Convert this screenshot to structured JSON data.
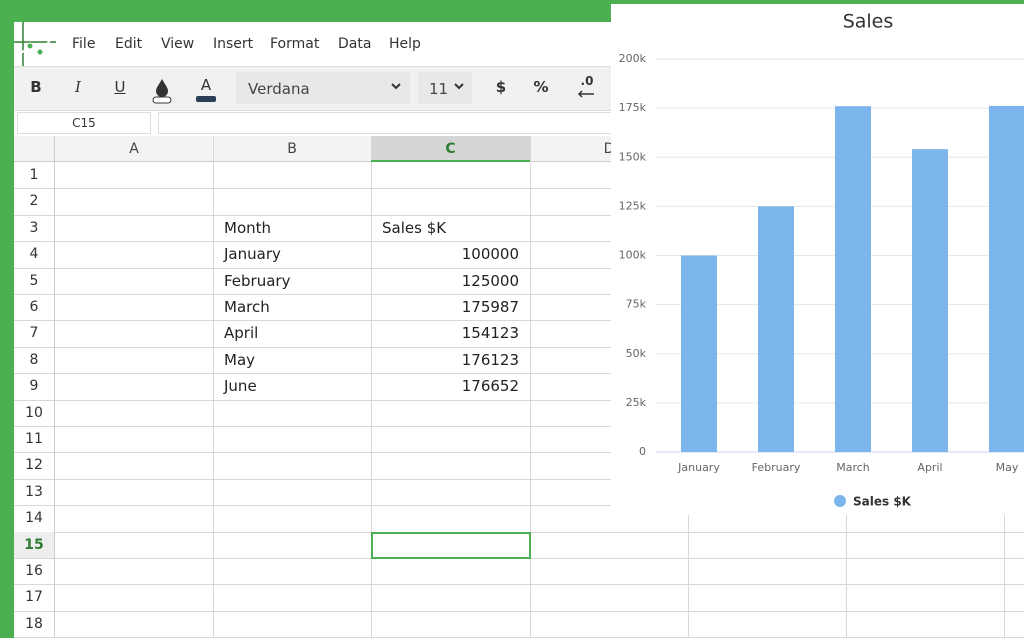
{
  "menu": [
    "File",
    "Edit",
    "View",
    "Insert",
    "Format",
    "Data",
    "Help"
  ],
  "toolbar": {
    "bold": "B",
    "italic": "I",
    "underline": "U",
    "text_color": "A",
    "font": "Verdana",
    "font_size": "11",
    "currency": "$",
    "percent": "%",
    "decimal": ".0"
  },
  "name_box": "C15",
  "columns": [
    "A",
    "B",
    "C",
    "D"
  ],
  "rows": [
    1,
    2,
    3,
    4,
    5,
    6,
    7,
    8,
    9,
    10,
    11,
    12,
    13,
    14,
    15,
    16,
    17,
    18
  ],
  "table": {
    "header": [
      "Month",
      "Sales $K"
    ],
    "rows": [
      [
        "January",
        100000
      ],
      [
        "February",
        125000
      ],
      [
        "March",
        175987
      ],
      [
        "April",
        154123
      ],
      [
        "May",
        176123
      ],
      [
        "June",
        176652
      ]
    ]
  },
  "chart_data": {
    "type": "bar",
    "title": "Sales",
    "categories": [
      "January",
      "February",
      "March",
      "April",
      "May"
    ],
    "series": [
      {
        "name": "Sales $K",
        "color": "#7cb5ec",
        "values": [
          100000,
          125000,
          175987,
          154123,
          176123
        ]
      }
    ],
    "ylim": [
      0,
      200000
    ],
    "yticks": [
      0,
      {
        "value": 25000,
        "label": "25k"
      },
      {
        "value": 50000,
        "label": "50k"
      },
      {
        "value": 75000,
        "label": "75k"
      },
      {
        "value": 100000,
        "label": "100k"
      },
      {
        "value": 125000,
        "label": "125k"
      },
      {
        "value": 150000,
        "label": "150k"
      },
      {
        "value": 175000,
        "label": "175k"
      },
      {
        "value": 200000,
        "label": "200k"
      }
    ],
    "grid": true,
    "legend": "bottom"
  }
}
